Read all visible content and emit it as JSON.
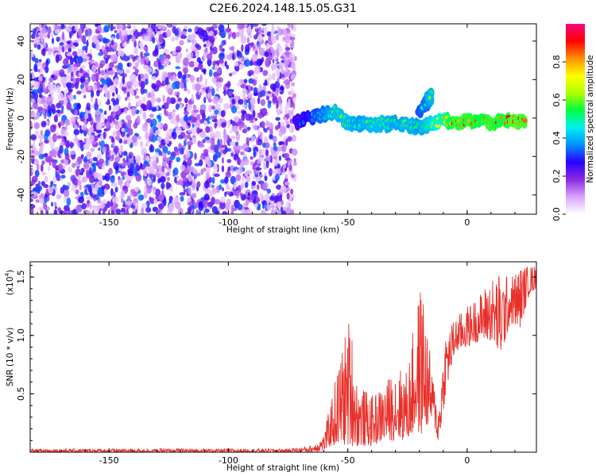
{
  "title": "C2E6.2024.148.15.05.G31",
  "chart_data": [
    {
      "type": "heatmap",
      "xlabel": "Height of straight line (km)",
      "ylabel": "Frequency (Hz)",
      "xlim": [
        -183,
        29
      ],
      "ylim": [
        -50,
        49
      ],
      "xticks": [
        -150,
        -100,
        -50,
        0
      ],
      "yticks": [
        -40,
        -20,
        0,
        20,
        40
      ],
      "colorbar": {
        "label": "Normalized spectral amplitude",
        "range": [
          0,
          1
        ],
        "ticks": [
          0.0,
          0.2,
          0.4,
          0.6,
          0.8
        ],
        "colors": [
          "#ffffff",
          "#d9a3ff",
          "#8a2be2",
          "#2a00ff",
          "#0090ff",
          "#00f0f0",
          "#00ff40",
          "#b0ff00",
          "#ffff00",
          "#ff9000",
          "#ff0000",
          "#ff0080"
        ]
      },
      "noise_region": {
        "x": [
          -183,
          -72
        ],
        "y": [
          -50,
          49
        ],
        "typical_amplitude": [
          0.0,
          0.3
        ]
      },
      "signal_track": [
        {
          "x": -72,
          "y": -2,
          "amp": 0.25
        },
        {
          "x": -65,
          "y": 0,
          "amp": 0.35
        },
        {
          "x": -60,
          "y": 2,
          "amp": 0.45
        },
        {
          "x": -55,
          "y": 3,
          "amp": 0.55
        },
        {
          "x": -50,
          "y": -3,
          "amp": 0.55
        },
        {
          "x": -45,
          "y": -3,
          "amp": 0.5
        },
        {
          "x": -40,
          "y": -4,
          "amp": 0.55
        },
        {
          "x": -35,
          "y": -3,
          "amp": 0.55
        },
        {
          "x": -30,
          "y": -3,
          "amp": 0.5
        },
        {
          "x": -25,
          "y": -4,
          "amp": 0.55
        },
        {
          "x": -20,
          "y": -5,
          "amp": 0.5
        },
        {
          "x": -15,
          "y": -3,
          "amp": 0.6
        },
        {
          "x": -10,
          "y": -1,
          "amp": 0.7
        },
        {
          "x": -5,
          "y": -2,
          "amp": 0.85
        },
        {
          "x": 0,
          "y": -2,
          "amp": 0.85
        },
        {
          "x": 5,
          "y": -1,
          "amp": 0.8
        },
        {
          "x": 10,
          "y": -3,
          "amp": 0.85
        },
        {
          "x": 15,
          "y": -1,
          "amp": 0.8
        },
        {
          "x": 20,
          "y": -2,
          "amp": 0.9
        },
        {
          "x": 25,
          "y": -2,
          "amp": 0.85
        }
      ],
      "secondary_feature": [
        {
          "x": -20,
          "y": 4,
          "amp": 0.4
        },
        {
          "x": -17,
          "y": 8,
          "amp": 0.45
        },
        {
          "x": -15,
          "y": 12,
          "amp": 0.55
        }
      ]
    },
    {
      "type": "line",
      "xlabel": "Height of straight line (km)",
      "ylabel": "SNR (10 * v/v)",
      "yscale_note": "(x10",
      "yscale_exp": "4",
      "xlim": [
        -183,
        29
      ],
      "ylim": [
        0,
        1.63
      ],
      "xticks": [
        -150,
        -100,
        -50,
        0
      ],
      "yticks": [
        0.5,
        1.0,
        1.5
      ],
      "ytick_labels": [
        "0.5",
        "1.0",
        "1.5"
      ],
      "series": [
        {
          "color": "#e8302a",
          "envelope": [
            {
              "x": -183,
              "low": 0.0,
              "high": 0.03
            },
            {
              "x": -75,
              "low": 0.0,
              "high": 0.03
            },
            {
              "x": -65,
              "low": 0.0,
              "high": 0.06
            },
            {
              "x": -60,
              "low": 0.01,
              "high": 0.15
            },
            {
              "x": -57,
              "low": 0.05,
              "high": 0.45
            },
            {
              "x": -52,
              "low": 0.05,
              "high": 0.95
            },
            {
              "x": -49,
              "low": 0.05,
              "high": 1.2
            },
            {
              "x": -46,
              "low": 0.05,
              "high": 0.6
            },
            {
              "x": -40,
              "low": 0.05,
              "high": 0.48
            },
            {
              "x": -34,
              "low": 0.1,
              "high": 0.6
            },
            {
              "x": -30,
              "low": 0.1,
              "high": 0.75
            },
            {
              "x": -25,
              "low": 0.1,
              "high": 0.7
            },
            {
              "x": -22,
              "low": 0.15,
              "high": 1.15
            },
            {
              "x": -19,
              "low": 0.15,
              "high": 1.5
            },
            {
              "x": -17,
              "low": 0.2,
              "high": 1.1
            },
            {
              "x": -14,
              "low": 0.25,
              "high": 0.6
            },
            {
              "x": -12,
              "low": 0.05,
              "high": 0.4
            },
            {
              "x": -9,
              "low": 0.5,
              "high": 1.05
            },
            {
              "x": -5,
              "low": 0.85,
              "high": 1.15
            },
            {
              "x": 0,
              "low": 0.9,
              "high": 1.25
            },
            {
              "x": 5,
              "low": 0.95,
              "high": 1.35
            },
            {
              "x": 10,
              "low": 0.95,
              "high": 1.5
            },
            {
              "x": 14,
              "low": 0.8,
              "high": 1.55
            },
            {
              "x": 18,
              "low": 1.1,
              "high": 1.5
            },
            {
              "x": 22,
              "low": 1.05,
              "high": 1.6
            },
            {
              "x": 26,
              "low": 1.35,
              "high": 1.6
            },
            {
              "x": 29,
              "low": 1.4,
              "high": 1.6
            }
          ]
        }
      ]
    }
  ]
}
